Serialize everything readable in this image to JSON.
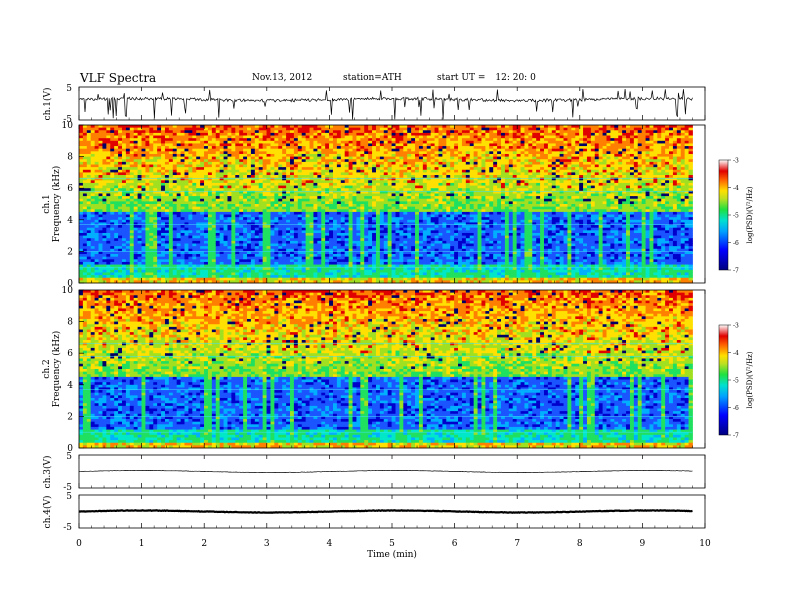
{
  "header": {
    "title": "VLF  Spectra",
    "date": "Nov.13, 2012",
    "station": "station=ATH",
    "start_label": "start  UT  =",
    "start_time": "12: 20: 0"
  },
  "chart_data": {
    "type": "heatmap",
    "x_axis": {
      "label": "Time  (min)",
      "range": [
        0,
        10
      ],
      "ticks": [
        "0",
        "1",
        "2",
        "3",
        "4",
        "5",
        "6",
        "7",
        "8",
        "9",
        "10"
      ],
      "data_extent_min": 9.8
    },
    "panels": [
      {
        "id": "ch1-waveform",
        "type": "line",
        "ylabel": "ch.1(V)",
        "yticks": [
          "5",
          "-5"
        ],
        "ylim": [
          -5,
          5
        ],
        "description_values": {
          "baseline_v": 1.2,
          "spike_count": "frequent negative spikes"
        }
      },
      {
        "id": "ch1-spectrogram",
        "type": "heatmap",
        "ylabel_line1": "ch.1",
        "ylabel_line2": "Frequency  (kHz)",
        "yticks": [
          "0",
          "2",
          "4",
          "6",
          "8",
          "10"
        ],
        "ylim": [
          0,
          10
        ],
        "colorbar": {
          "label": "log(PSD)(V²/Hz)",
          "ticks": [
            "-3",
            "-4",
            "-5",
            "-6",
            "-7"
          ],
          "range": [
            -7,
            -3
          ]
        }
      },
      {
        "id": "ch2-spectrogram",
        "type": "heatmap",
        "ylabel_line1": "ch.2",
        "ylabel_line2": "Frequency  (kHz)",
        "yticks": [
          "0",
          "2",
          "4",
          "6",
          "8",
          "10"
        ],
        "ylim": [
          0,
          10
        ],
        "colorbar": {
          "label": "log(PSD)(V²/Hz)",
          "ticks": [
            "-3",
            "-4",
            "-5",
            "-6",
            "-7"
          ],
          "range": [
            -7,
            -3
          ]
        }
      },
      {
        "id": "ch3-waveform",
        "type": "line",
        "ylabel": "ch.3(V)",
        "yticks": [
          "5",
          "-5"
        ],
        "ylim": [
          -5,
          5
        ],
        "description_values": {
          "baseline_v": 0.0
        }
      },
      {
        "id": "ch4-waveform",
        "type": "line",
        "ylabel": "ch.4(V)",
        "yticks": [
          "5",
          "-5"
        ],
        "ylim": [
          -5,
          5
        ],
        "description_values": {
          "baseline_v": 0.0
        }
      }
    ],
    "colormap": [
      "#000066",
      "#0000cc",
      "#1a55ff",
      "#00b0ff",
      "#00e8c8",
      "#20e060",
      "#a0e020",
      "#ffe000",
      "#ff8000",
      "#e00000",
      "#ffffff"
    ]
  }
}
